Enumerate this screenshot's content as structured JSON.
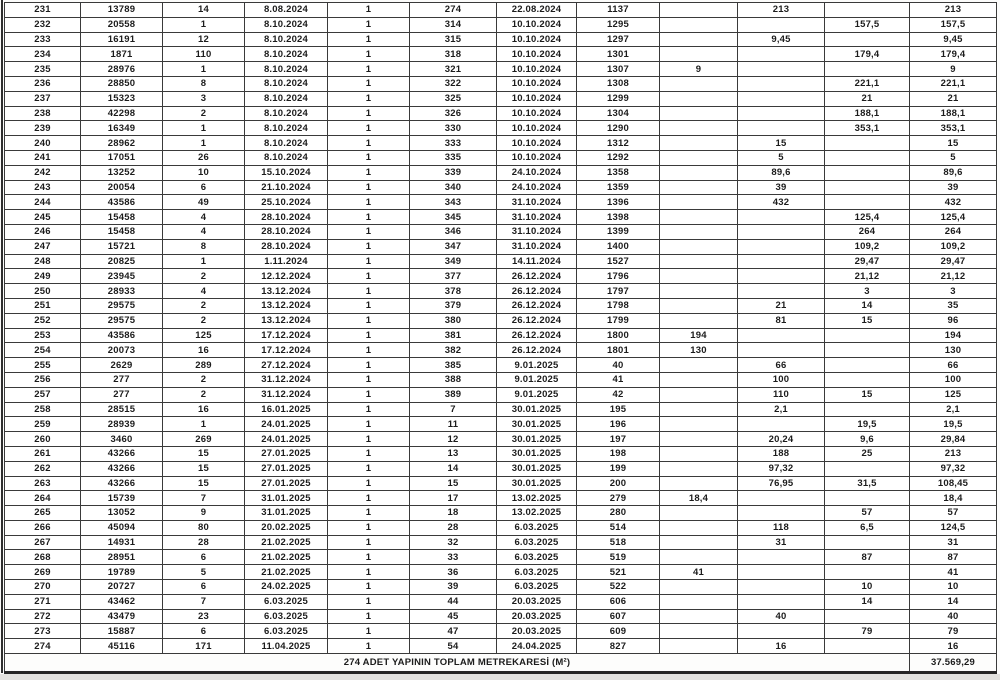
{
  "document": {
    "type": "scanned-table-page",
    "ink_color": "#1c1c1c",
    "border_color": "#3a3a3a",
    "paper_color": "#fcfcfb"
  },
  "table": {
    "rows": [
      [
        "231",
        "13789",
        "14",
        "8.08.2024",
        "1",
        "274",
        "22.08.2024",
        "1137",
        "",
        "213",
        "",
        "213"
      ],
      [
        "232",
        "20558",
        "1",
        "8.10.2024",
        "1",
        "314",
        "10.10.2024",
        "1295",
        "",
        "",
        "157,5",
        "157,5"
      ],
      [
        "233",
        "16191",
        "12",
        "8.10.2024",
        "1",
        "315",
        "10.10.2024",
        "1297",
        "",
        "9,45",
        "",
        "9,45"
      ],
      [
        "234",
        "1871",
        "110",
        "8.10.2024",
        "1",
        "318",
        "10.10.2024",
        "1301",
        "",
        "",
        "179,4",
        "179,4"
      ],
      [
        "235",
        "28976",
        "1",
        "8.10.2024",
        "1",
        "321",
        "10.10.2024",
        "1307",
        "9",
        "",
        "",
        "9"
      ],
      [
        "236",
        "28850",
        "8",
        "8.10.2024",
        "1",
        "322",
        "10.10.2024",
        "1308",
        "",
        "",
        "221,1",
        "221,1"
      ],
      [
        "237",
        "15323",
        "3",
        "8.10.2024",
        "1",
        "325",
        "10.10.2024",
        "1299",
        "",
        "",
        "21",
        "21"
      ],
      [
        "238",
        "42298",
        "2",
        "8.10.2024",
        "1",
        "326",
        "10.10.2024",
        "1304",
        "",
        "",
        "188,1",
        "188,1"
      ],
      [
        "239",
        "16349",
        "1",
        "8.10.2024",
        "1",
        "330",
        "10.10.2024",
        "1290",
        "",
        "",
        "353,1",
        "353,1"
      ],
      [
        "240",
        "28962",
        "1",
        "8.10.2024",
        "1",
        "333",
        "10.10.2024",
        "1312",
        "",
        "15",
        "",
        "15"
      ],
      [
        "241",
        "17051",
        "26",
        "8.10.2024",
        "1",
        "335",
        "10.10.2024",
        "1292",
        "",
        "5",
        "",
        "5"
      ],
      [
        "242",
        "13252",
        "10",
        "15.10.2024",
        "1",
        "339",
        "24.10.2024",
        "1358",
        "",
        "89,6",
        "",
        "89,6"
      ],
      [
        "243",
        "20054",
        "6",
        "21.10.2024",
        "1",
        "340",
        "24.10.2024",
        "1359",
        "",
        "39",
        "",
        "39"
      ],
      [
        "244",
        "43586",
        "49",
        "25.10.2024",
        "1",
        "343",
        "31.10.2024",
        "1396",
        "",
        "432",
        "",
        "432"
      ],
      [
        "245",
        "15458",
        "4",
        "28.10.2024",
        "1",
        "345",
        "31.10.2024",
        "1398",
        "",
        "",
        "125,4",
        "125,4"
      ],
      [
        "246",
        "15458",
        "4",
        "28.10.2024",
        "1",
        "346",
        "31.10.2024",
        "1399",
        "",
        "",
        "264",
        "264"
      ],
      [
        "247",
        "15721",
        "8",
        "28.10.2024",
        "1",
        "347",
        "31.10.2024",
        "1400",
        "",
        "",
        "109,2",
        "109,2"
      ],
      [
        "248",
        "20825",
        "1",
        "1.11.2024",
        "1",
        "349",
        "14.11.2024",
        "1527",
        "",
        "",
        "29,47",
        "29,47"
      ],
      [
        "249",
        "23945",
        "2",
        "12.12.2024",
        "1",
        "377",
        "26.12.2024",
        "1796",
        "",
        "",
        "21,12",
        "21,12"
      ],
      [
        "250",
        "28933",
        "4",
        "13.12.2024",
        "1",
        "378",
        "26.12.2024",
        "1797",
        "",
        "",
        "3",
        "3"
      ],
      [
        "251",
        "29575",
        "2",
        "13.12.2024",
        "1",
        "379",
        "26.12.2024",
        "1798",
        "",
        "21",
        "14",
        "35"
      ],
      [
        "252",
        "29575",
        "2",
        "13.12.2024",
        "1",
        "380",
        "26.12.2024",
        "1799",
        "",
        "81",
        "15",
        "96"
      ],
      [
        "253",
        "43586",
        "125",
        "17.12.2024",
        "1",
        "381",
        "26.12.2024",
        "1800",
        "194",
        "",
        "",
        "194"
      ],
      [
        "254",
        "20073",
        "16",
        "17.12.2024",
        "1",
        "382",
        "26.12.2024",
        "1801",
        "130",
        "",
        "",
        "130"
      ],
      [
        "255",
        "2629",
        "289",
        "27.12.2024",
        "1",
        "385",
        "9.01.2025",
        "40",
        "",
        "66",
        "",
        "66"
      ],
      [
        "256",
        "277",
        "2",
        "31.12.2024",
        "1",
        "388",
        "9.01.2025",
        "41",
        "",
        "100",
        "",
        "100"
      ],
      [
        "257",
        "277",
        "2",
        "31.12.2024",
        "1",
        "389",
        "9.01.2025",
        "42",
        "",
        "110",
        "15",
        "125"
      ],
      [
        "258",
        "28515",
        "16",
        "16.01.2025",
        "1",
        "7",
        "30.01.2025",
        "195",
        "",
        "2,1",
        "",
        "2,1"
      ],
      [
        "259",
        "28939",
        "1",
        "24.01.2025",
        "1",
        "11",
        "30.01.2025",
        "196",
        "",
        "",
        "19,5",
        "19,5"
      ],
      [
        "260",
        "3460",
        "269",
        "24.01.2025",
        "1",
        "12",
        "30.01.2025",
        "197",
        "",
        "20,24",
        "9,6",
        "29,84"
      ],
      [
        "261",
        "43266",
        "15",
        "27.01.2025",
        "1",
        "13",
        "30.01.2025",
        "198",
        "",
        "188",
        "25",
        "213"
      ],
      [
        "262",
        "43266",
        "15",
        "27.01.2025",
        "1",
        "14",
        "30.01.2025",
        "199",
        "",
        "97,32",
        "",
        "97,32"
      ],
      [
        "263",
        "43266",
        "15",
        "27.01.2025",
        "1",
        "15",
        "30.01.2025",
        "200",
        "",
        "76,95",
        "31,5",
        "108,45"
      ],
      [
        "264",
        "15739",
        "7",
        "31.01.2025",
        "1",
        "17",
        "13.02.2025",
        "279",
        "18,4",
        "",
        "",
        "18,4"
      ],
      [
        "265",
        "13052",
        "9",
        "31.01.2025",
        "1",
        "18",
        "13.02.2025",
        "280",
        "",
        "",
        "57",
        "57"
      ],
      [
        "266",
        "45094",
        "80",
        "20.02.2025",
        "1",
        "28",
        "6.03.2025",
        "514",
        "",
        "118",
        "6,5",
        "124,5"
      ],
      [
        "267",
        "14931",
        "28",
        "21.02.2025",
        "1",
        "32",
        "6.03.2025",
        "518",
        "",
        "31",
        "",
        "31"
      ],
      [
        "268",
        "28951",
        "6",
        "21.02.2025",
        "1",
        "33",
        "6.03.2025",
        "519",
        "",
        "",
        "87",
        "87"
      ],
      [
        "269",
        "19789",
        "5",
        "21.02.2025",
        "1",
        "36",
        "6.03.2025",
        "521",
        "41",
        "",
        "",
        "41"
      ],
      [
        "270",
        "20727",
        "6",
        "24.02.2025",
        "1",
        "39",
        "6.03.2025",
        "522",
        "",
        "",
        "10",
        "10"
      ],
      [
        "271",
        "43462",
        "7",
        "6.03.2025",
        "1",
        "44",
        "20.03.2025",
        "606",
        "",
        "",
        "14",
        "14"
      ],
      [
        "272",
        "43479",
        "23",
        "6.03.2025",
        "1",
        "45",
        "20.03.2025",
        "607",
        "",
        "40",
        "",
        "40"
      ],
      [
        "273",
        "15887",
        "6",
        "6.03.2025",
        "1",
        "47",
        "20.03.2025",
        "609",
        "",
        "",
        "79",
        "79"
      ],
      [
        "274",
        "45116",
        "171",
        "11.04.2025",
        "1",
        "54",
        "24.04.2025",
        "827",
        "",
        "16",
        "",
        "16"
      ]
    ],
    "footer_label": "274 ADET YAPININ TOPLAM METREKARESİ (M²)",
    "footer_value": "37.569,29"
  }
}
